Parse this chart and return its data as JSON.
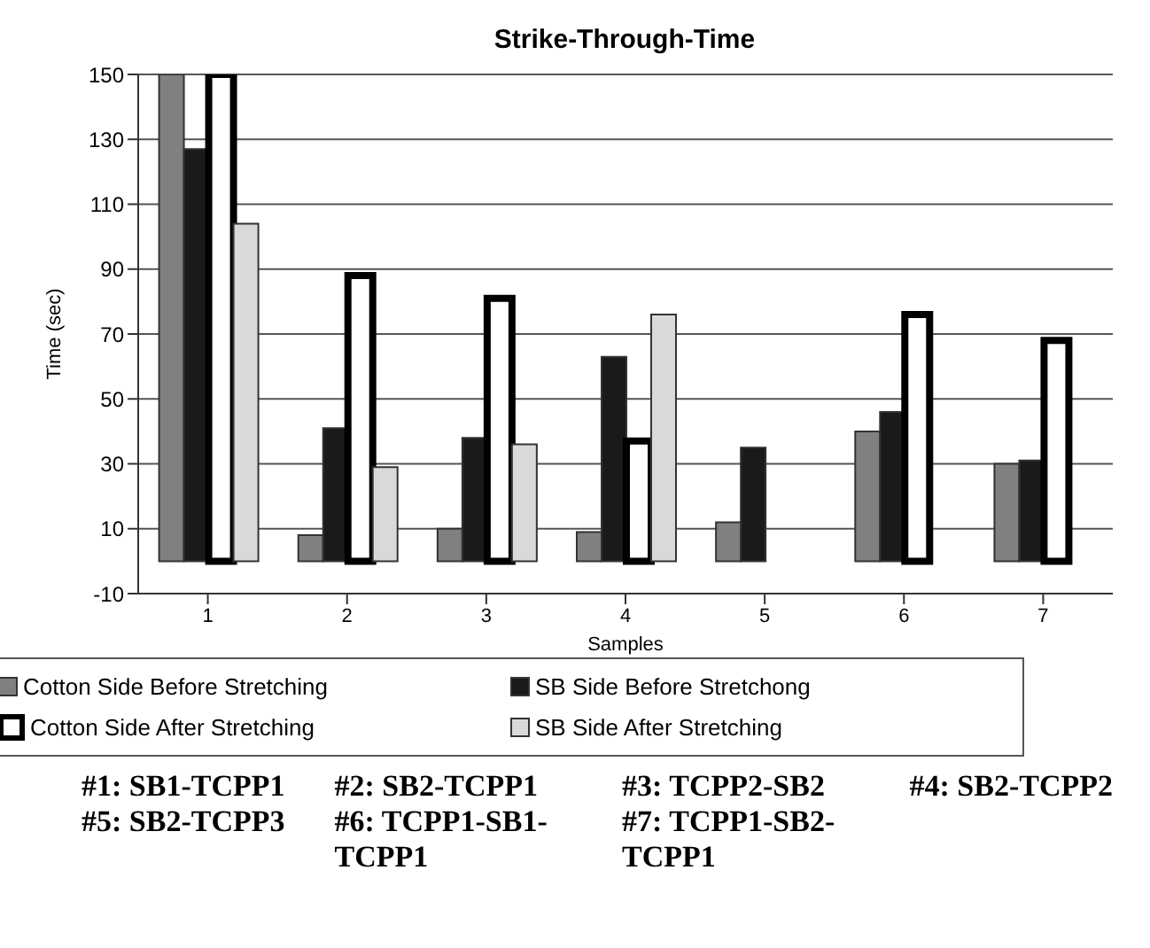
{
  "chart_data": {
    "type": "bar",
    "title": "Strike-Through-Time",
    "xlabel": "Samples",
    "ylabel": "Time (sec)",
    "categories": [
      "1",
      "2",
      "3",
      "4",
      "5",
      "6",
      "7"
    ],
    "series": [
      {
        "name": "Cotton Side Before Stretching",
        "color": "#808080",
        "values": [
          150,
          8,
          10,
          9,
          12,
          40,
          30
        ]
      },
      {
        "name": "SB Side Before Stretchong",
        "color": "#1a1a1a",
        "values": [
          127,
          41,
          38,
          63,
          35,
          46,
          31
        ]
      },
      {
        "name": "Cotton Side After Stretching",
        "color": "#ffffff",
        "values": [
          150,
          88,
          81,
          37,
          null,
          76,
          68
        ]
      },
      {
        "name": "SB Side After Stretching",
        "color": "#d9d9d9",
        "values": [
          104,
          29,
          36,
          76,
          null,
          null,
          null
        ]
      }
    ],
    "ylim": [
      -10,
      150
    ],
    "yticks": [
      -10,
      10,
      30,
      50,
      70,
      90,
      110,
      130,
      150
    ],
    "grid": "y",
    "legend": "bottom",
    "annotations": [
      "#1: SB1-TCPP1",
      "#2: SB2-TCPP1",
      "#3: TCPP2-SB2",
      "#4: SB2-TCPP2",
      "#5: SB2-TCPP3",
      "#6: TCPP1-SB1-TCPP1",
      "#7: TCPP1-SB2-TCPP1"
    ]
  }
}
